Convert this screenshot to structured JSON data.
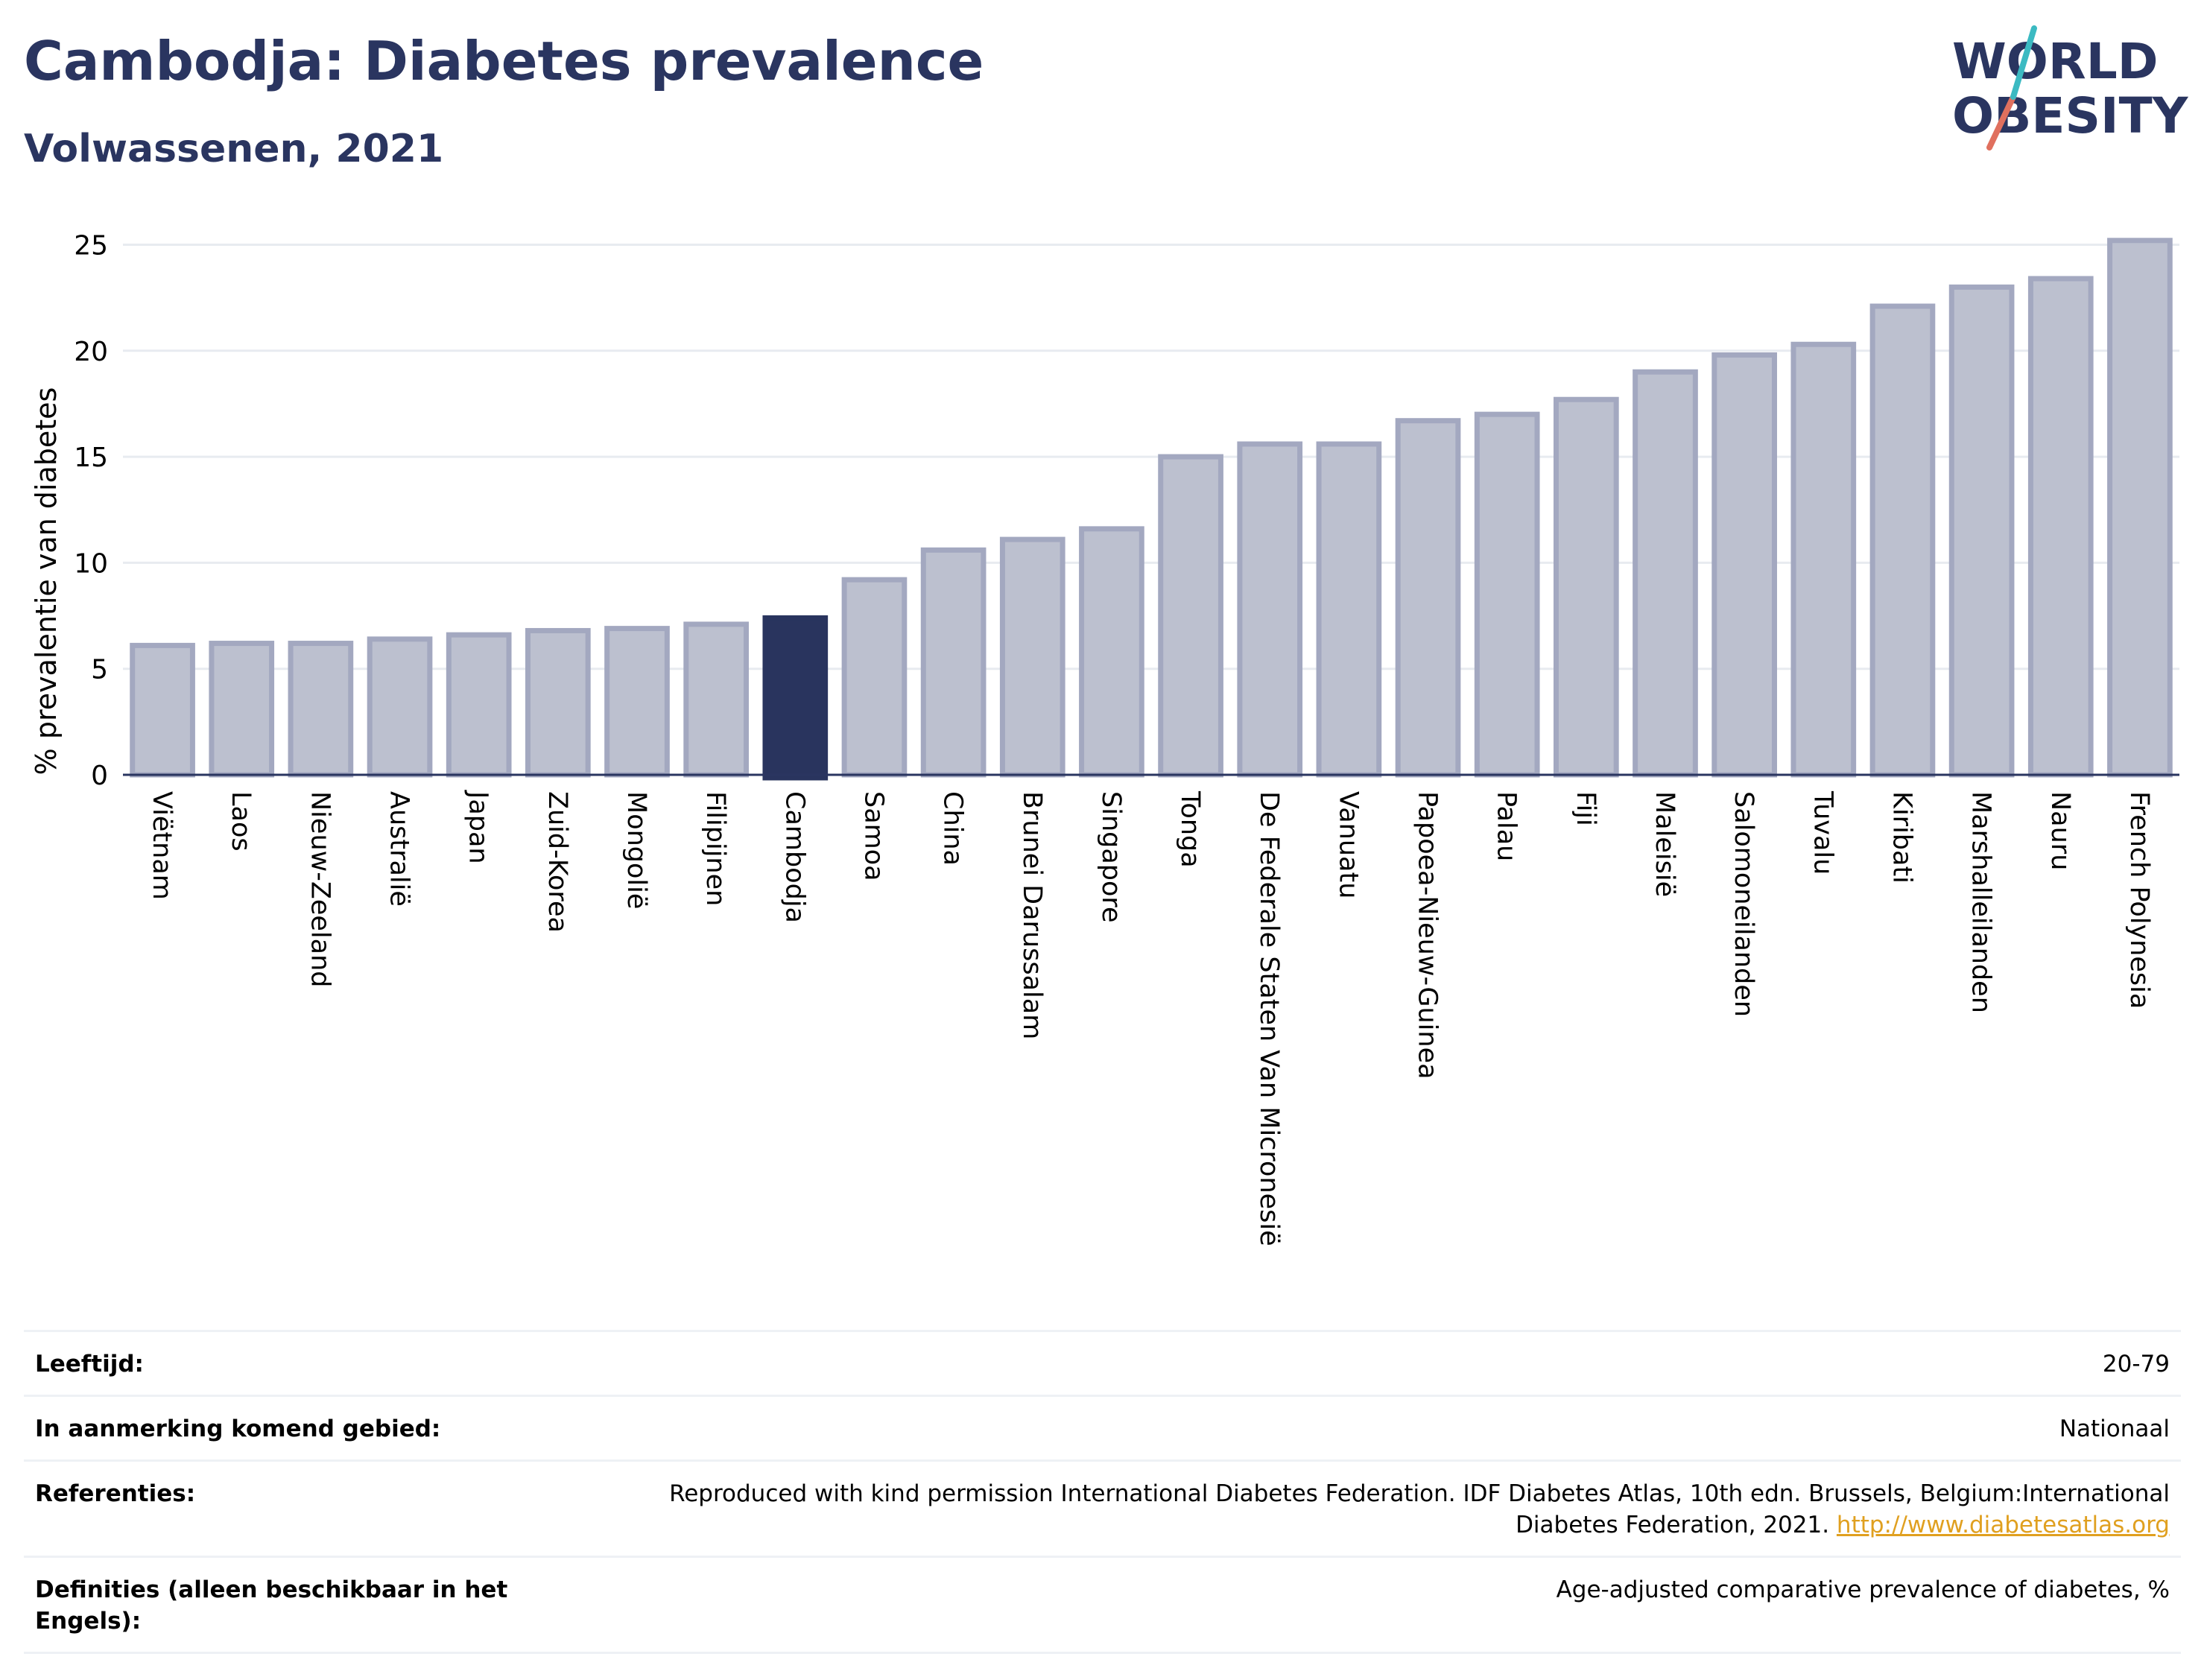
{
  "header": {
    "title": "Cambodja: Diabetes prevalence",
    "subtitle": "Volwassenen, 2021"
  },
  "logo": {
    "line1": "WORLD",
    "line2": "OBESITY"
  },
  "colors": {
    "bar": "#bcc0cf",
    "bar_border": "#a3a8c0",
    "highlight": "#29345e",
    "title": "#2a3560",
    "grid": "#e8ebf0",
    "link": "#e0a020"
  },
  "chart_data": {
    "type": "bar",
    "title": "Cambodja: Diabetes prevalence",
    "subtitle": "Volwassenen, 2021",
    "ylabel": "% prevalentie van diabetes",
    "xlabel": "",
    "ylim": [
      0,
      26
    ],
    "yticks": [
      0,
      5,
      10,
      15,
      20,
      25
    ],
    "grid": true,
    "highlight": "Cambodja",
    "categories": [
      "Viëtnam",
      "Laos",
      "Nieuw-Zeeland",
      "Australië",
      "Japan",
      "Zuid-Korea",
      "Mongolië",
      "Filipijnen",
      "Cambodja",
      "Samoa",
      "China",
      "Brunei Darussalam",
      "Singapore",
      "Tonga",
      "De Federale Staten Van Micronesië",
      "Vanuatu",
      "Papoea-Nieuw-Guinea",
      "Palau",
      "Fiji",
      "Maleisië",
      "Salomoneilanden",
      "Tuvalu",
      "Kiribati",
      "Marshalleilanden",
      "Nauru",
      "French Polynesia"
    ],
    "values": [
      6.1,
      6.2,
      6.2,
      6.4,
      6.6,
      6.8,
      6.9,
      7.1,
      7.4,
      9.2,
      10.6,
      11.1,
      11.6,
      15.0,
      15.6,
      15.6,
      16.7,
      17.0,
      17.7,
      19.0,
      19.8,
      20.3,
      22.1,
      23.0,
      23.4,
      25.2
    ]
  },
  "info": {
    "rows": [
      {
        "label": "Leeftijd:",
        "value": "20-79"
      },
      {
        "label": "In aanmerking komend gebied:",
        "value": "Nationaal"
      },
      {
        "label": "Referenties:",
        "value": "Reproduced with kind permission International Diabetes Federation.  IDF Diabetes Atlas, 10th edn. Brussels, Belgium:International Diabetes Federation, 2021.",
        "link": "http://www.diabetesatlas.org"
      },
      {
        "label": "Definities (alleen beschikbaar in het Engels):",
        "value": "Age-adjusted comparative prevalence of diabetes, %"
      }
    ]
  }
}
